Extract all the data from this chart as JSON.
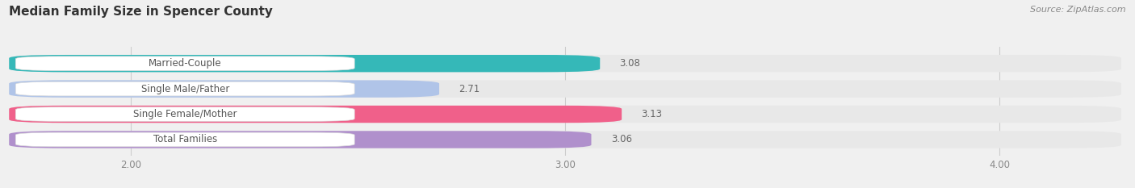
{
  "title": "Median Family Size in Spencer County",
  "source": "Source: ZipAtlas.com",
  "categories": [
    "Married-Couple",
    "Single Male/Father",
    "Single Female/Mother",
    "Total Families"
  ],
  "values": [
    3.08,
    2.71,
    3.13,
    3.06
  ],
  "bar_colors": [
    "#35b8b8",
    "#b0c4e8",
    "#f0608a",
    "#b090cc"
  ],
  "bg_color": "#f0f0f0",
  "bar_bg_color": "#e8e8e8",
  "xlim_min": 1.72,
  "xlim_max": 4.28,
  "xmin": 1.72,
  "xticks": [
    2.0,
    3.0,
    4.0
  ],
  "xtick_labels": [
    "2.00",
    "3.00",
    "4.00"
  ],
  "title_fontsize": 11,
  "label_fontsize": 8.5,
  "value_fontsize": 8.5,
  "source_fontsize": 8
}
